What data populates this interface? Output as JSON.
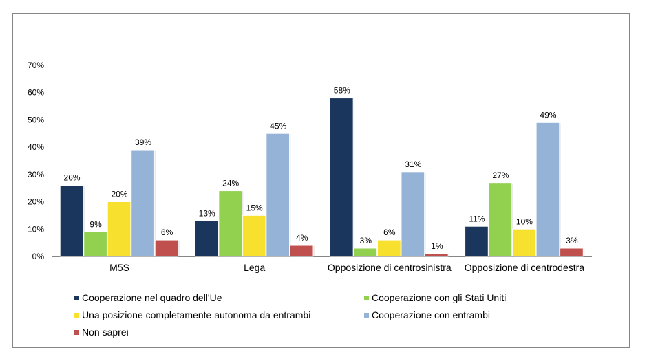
{
  "chart_data": {
    "type": "bar",
    "title": "",
    "xlabel": "",
    "ylabel": "",
    "ylim": [
      0,
      70
    ],
    "yticks": [
      0,
      10,
      20,
      30,
      40,
      50,
      60,
      70
    ],
    "ytick_format": "%",
    "grid": false,
    "legend_position": "bottom",
    "categories": [
      "M5S",
      "Lega",
      "Opposizione di centrosinistra",
      "Opposizione di centrodestra"
    ],
    "series": [
      {
        "name": "Cooperazione nel quadro dell'Ue",
        "color": "#1b365d",
        "values": [
          26,
          13,
          58,
          11
        ]
      },
      {
        "name": "Cooperazione con gli Stati Uniti",
        "color": "#92d050",
        "values": [
          9,
          24,
          3,
          27
        ]
      },
      {
        "name": "Una posizione completamente autonoma da entrambi",
        "color": "#f7e02e",
        "values": [
          20,
          15,
          6,
          10
        ]
      },
      {
        "name": "Cooperazione con entrambi",
        "color": "#95b3d7",
        "values": [
          39,
          45,
          31,
          49
        ]
      },
      {
        "name": "Non saprei",
        "color": "#c0504d",
        "values": [
          6,
          4,
          1,
          3
        ]
      }
    ],
    "data_labels": true
  }
}
